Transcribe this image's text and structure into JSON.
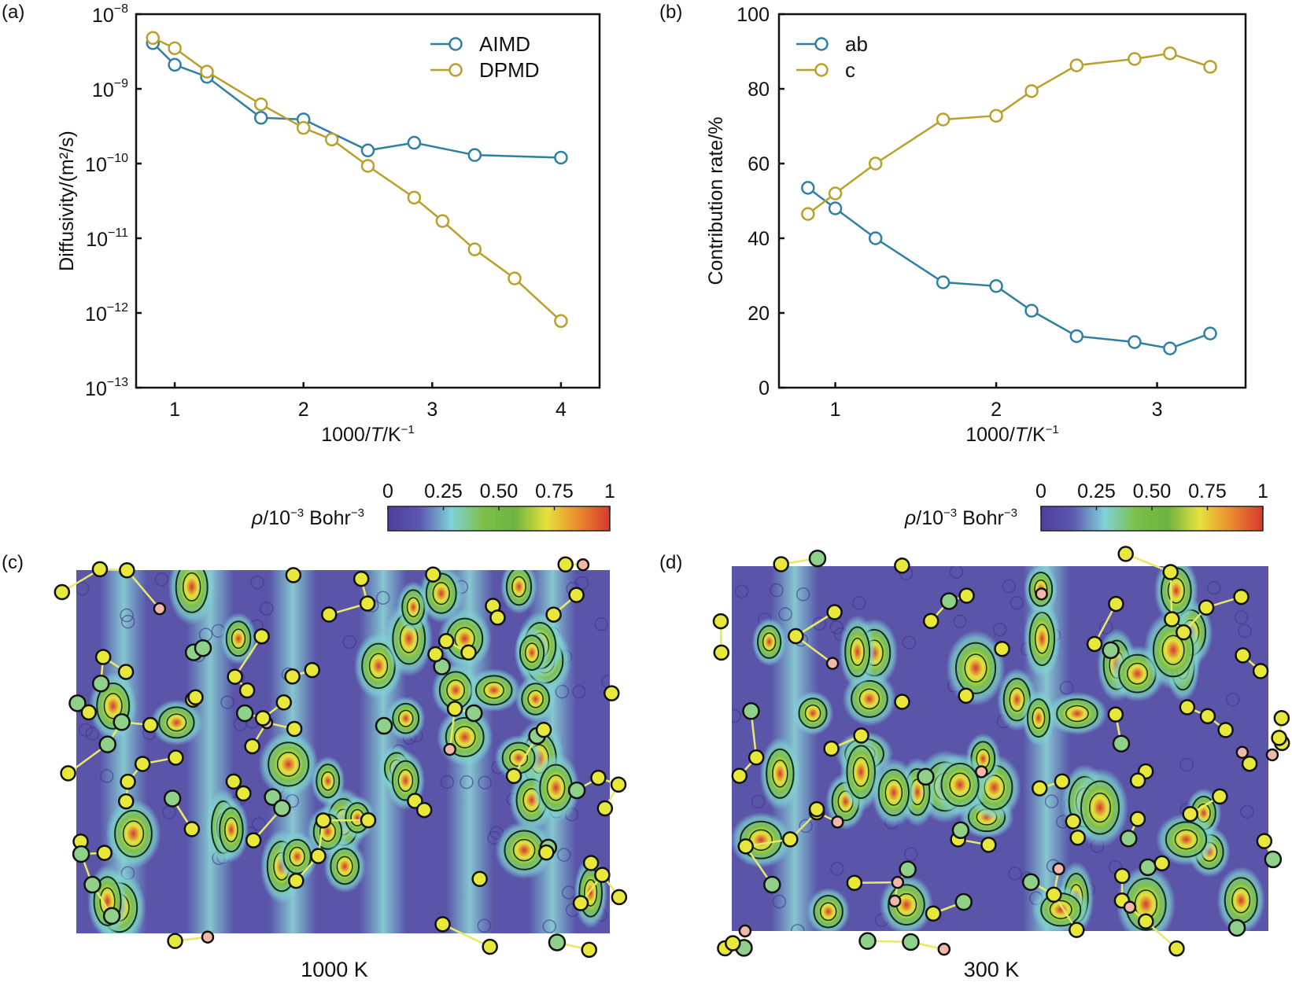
{
  "figure": {
    "panel_labels": [
      "(a)",
      "(b)",
      "(c)",
      "(d)"
    ],
    "captions": {
      "c": "1000 K",
      "d": "300 K"
    }
  },
  "colors": {
    "blue": "#2e7fa3",
    "gold": "#b8a02a",
    "axis": "#111111",
    "map_background": "#5a55a8",
    "atom_fill": "#e8e83a",
    "atom_stroke": "#111111",
    "colormap": [
      "#4b3f9a",
      "#5d57b0",
      "#7fd2d8",
      "#7cc04a",
      "#6db33f",
      "#e6e23c",
      "#ea8b2d",
      "#d6382e"
    ]
  },
  "chart_data": [
    {
      "id": "a",
      "type": "line",
      "title": "",
      "xlabel": "1000/T/K⁻¹",
      "xlabel_parts": [
        "1000/",
        "T",
        "/K",
        "−1"
      ],
      "ylabel": "Diffusivity/(m²/s)",
      "yscale": "log",
      "xlim": [
        0.7,
        4.3
      ],
      "ylim": [
        1e-13,
        1e-08
      ],
      "xticks": [
        1,
        2,
        3,
        4
      ],
      "xtick_labels": [
        "1",
        "2",
        "3",
        "4"
      ],
      "yticks": [
        -8,
        -9,
        -10,
        -11,
        -12,
        -13
      ],
      "ytick_labels": [
        "−8",
        "−9",
        "−10",
        "−11",
        "−12",
        "−13"
      ],
      "ytick_base": "10",
      "legend_position": "top-right",
      "series": [
        {
          "name": "AIMD",
          "color_key": "blue",
          "x": [
            0.83,
            1.0,
            1.25,
            1.67,
            2.0,
            2.5,
            2.86,
            3.33,
            4.0
          ],
          "y": [
            4.1e-09,
            2.1e-09,
            1.45e-09,
            4.1e-10,
            3.9e-10,
            1.5e-10,
            1.9e-10,
            1.3e-10,
            1.2e-10
          ]
        },
        {
          "name": "DPMD",
          "color_key": "gold",
          "x": [
            0.83,
            1.0,
            1.25,
            1.67,
            2.0,
            2.22,
            2.5,
            2.86,
            3.08,
            3.33,
            3.64,
            4.0
          ],
          "y": [
            4.8e-09,
            3.5e-09,
            1.7e-09,
            6.2e-10,
            3e-10,
            2.1e-10,
            9.3e-11,
            3.5e-11,
            1.7e-11,
            7.1e-12,
            2.9e-12,
            7.8e-13
          ]
        }
      ]
    },
    {
      "id": "b",
      "type": "line",
      "title": "",
      "xlabel": "1000/T/K⁻¹",
      "xlabel_parts": [
        "1000/",
        "T",
        "/K",
        "−1"
      ],
      "ylabel": "Contribution rate/%",
      "yscale": "linear",
      "xlim": [
        0.65,
        3.55
      ],
      "ylim": [
        0,
        100
      ],
      "xticks": [
        1,
        2,
        3
      ],
      "xtick_labels": [
        "1",
        "2",
        "3"
      ],
      "yticks": [
        0,
        20,
        40,
        60,
        80,
        100
      ],
      "ytick_labels": [
        "0",
        "20",
        "40",
        "60",
        "80",
        "100"
      ],
      "legend_position": "top-left",
      "series": [
        {
          "name": "ab",
          "color_key": "blue",
          "x": [
            0.83,
            1.0,
            1.25,
            1.67,
            2.0,
            2.22,
            2.5,
            2.86,
            3.08,
            3.33
          ],
          "y": [
            53.5,
            48.0,
            40.0,
            28.2,
            27.2,
            20.6,
            13.8,
            12.2,
            10.5,
            14.5
          ]
        },
        {
          "name": "c",
          "color_key": "gold",
          "x": [
            0.83,
            1.0,
            1.25,
            1.67,
            2.0,
            2.22,
            2.5,
            2.86,
            3.08,
            3.33
          ],
          "y": [
            46.5,
            52.0,
            60.0,
            71.8,
            72.8,
            79.4,
            86.3,
            88.0,
            89.5,
            85.9
          ]
        }
      ]
    },
    {
      "id": "c",
      "type": "heatmap",
      "title": "1000 K",
      "colorbar_label_parts": [
        "ρ",
        "/10",
        "−3",
        " Bohr",
        "−3"
      ],
      "colorbar_ticks": [
        0,
        0.25,
        0.5,
        0.75,
        1
      ],
      "colorbar_tick_labels": [
        "0",
        "0.25",
        "0.50",
        "0.75",
        "1"
      ],
      "clim": [
        0,
        1
      ],
      "pattern": "vertical channels of high density"
    },
    {
      "id": "d",
      "type": "heatmap",
      "title": "300 K",
      "colorbar_label_parts": [
        "ρ",
        "/10",
        "−3",
        " Bohr",
        "−3"
      ],
      "colorbar_ticks": [
        0,
        0.25,
        0.5,
        0.75,
        1
      ],
      "colorbar_tick_labels": [
        "0",
        "0.25",
        "0.50",
        "0.75",
        "1"
      ],
      "clim": [
        0,
        1
      ],
      "pattern": "localized density spots"
    }
  ]
}
